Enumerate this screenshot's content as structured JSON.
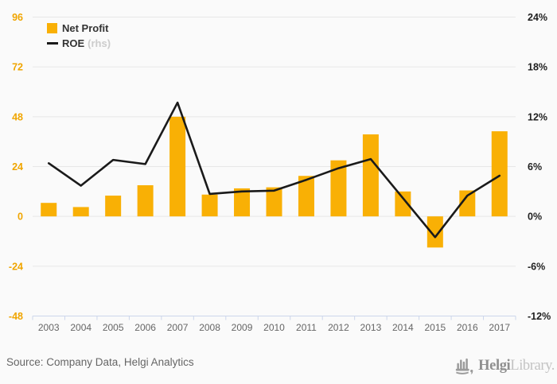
{
  "legend": {
    "net_profit": "Net Profit",
    "roe": "ROE",
    "roe_suffix": "(rhs)"
  },
  "footer": {
    "source": "Source: Company Data, Helgi Analytics",
    "logo_primary": "Helgi",
    "logo_secondary": "Library."
  },
  "colors": {
    "background": "#FAFAFA",
    "bar": "#F9B005",
    "line": "#1A1A1A",
    "left_axis_label": "#F0A500",
    "right_axis_label": "#1F1F1F",
    "grid": "#E7E7E7",
    "axis_line": "#CCD6EB",
    "year_label": "#666666"
  },
  "chart_data": {
    "type": "combo",
    "title": "",
    "categories": [
      "2003",
      "2004",
      "2005",
      "2006",
      "2007",
      "2008",
      "2009",
      "2010",
      "2011",
      "2012",
      "2013",
      "2014",
      "2015",
      "2016",
      "2017"
    ],
    "series": [
      {
        "name": "Net Profit",
        "type": "bar",
        "axis": "left",
        "color": "#F9B005",
        "values": [
          6.5,
          4.5,
          10,
          15,
          48,
          10.5,
          13.5,
          14,
          19.5,
          27,
          39.5,
          12,
          -15,
          12.5,
          41
        ]
      },
      {
        "name": "ROE (rhs)",
        "type": "line",
        "axis": "right",
        "color": "#1A1A1A",
        "values": [
          6.4,
          3.7,
          6.8,
          6.3,
          13.7,
          2.7,
          3.0,
          3.1,
          4.4,
          5.8,
          6.9,
          2.2,
          -2.5,
          2.5,
          4.9
        ]
      }
    ],
    "left_axis": {
      "ticks": [
        96,
        72,
        48,
        24,
        0,
        -24,
        -48
      ],
      "range": [
        -48,
        96
      ]
    },
    "right_axis": {
      "ticks": [
        "24%",
        "18%",
        "12%",
        "6%",
        "0%",
        "-6%",
        "-12%"
      ],
      "range": [
        -12,
        24
      ]
    },
    "grid": true,
    "legend_position": "top-left"
  }
}
